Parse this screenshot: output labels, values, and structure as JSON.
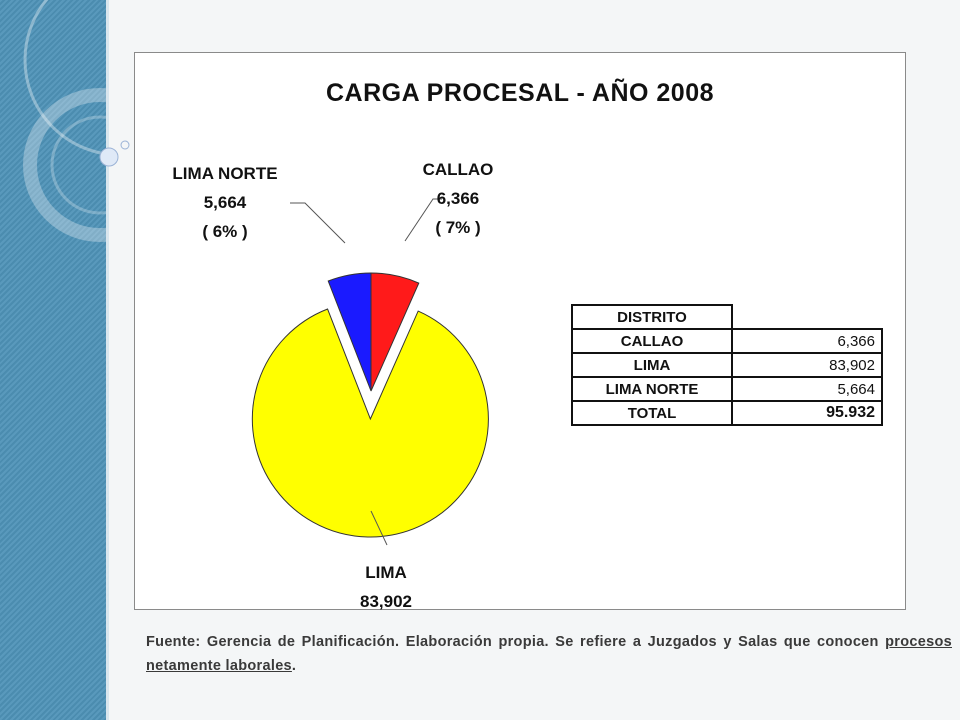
{
  "chart_data": {
    "type": "pie",
    "title": "CARGA PROCESAL - AÑO 2008",
    "slices": [
      {
        "name": "CALLAO",
        "value": 6366,
        "value_label": "6,366",
        "pct_label": "( 7% )",
        "color": "#ff1a1a"
      },
      {
        "name": "LIMA",
        "value": 83902,
        "value_label": "83,902",
        "pct_label": "",
        "color": "#ffff00"
      },
      {
        "name": "LIMA NORTE",
        "value": 5664,
        "value_label": "5,664",
        "pct_label": "( 6% )",
        "color": "#1a1aff"
      }
    ]
  },
  "table": {
    "header": "DISTRITO",
    "rows": [
      {
        "name": "CALLAO",
        "value": "6,366"
      },
      {
        "name": "LIMA",
        "value": "83,902"
      },
      {
        "name": "LIMA NORTE",
        "value": "5,664"
      },
      {
        "name": "TOTAL",
        "value": "95.932"
      }
    ]
  },
  "footnote": {
    "text_before": "Fuente: Gerencia de Planificación. Elaboración propia. Se refiere a Juzgados y Salas que conocen ",
    "underlined": "procesos netamente laborales",
    "text_after": "."
  },
  "colors": {
    "sidebar": "#4f93b8"
  }
}
